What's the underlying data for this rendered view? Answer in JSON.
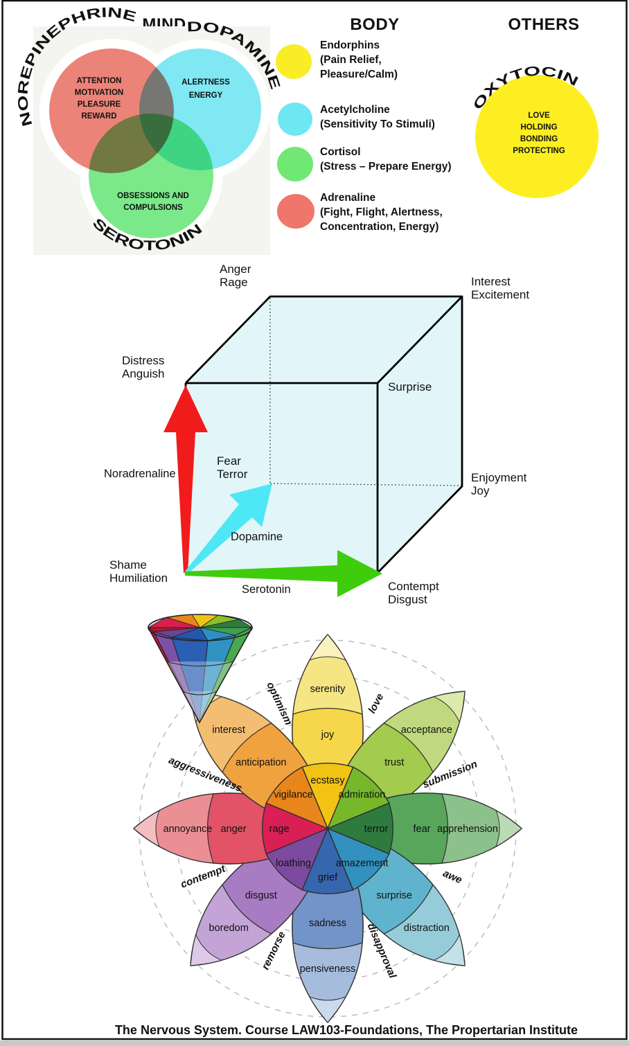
{
  "page": {
    "caption": "The Nervous System. Course LAW103-Foundations, The Propertarian Institute",
    "border_color": "#111111",
    "footer_strip_color": "#c9c9c9"
  },
  "headers": {
    "mind": "MIND",
    "body": "BODY",
    "others": "OTHERS"
  },
  "venn": {
    "circles": [
      {
        "name": "NOREPINEPHRINE",
        "color": "#EC8378",
        "lines": [
          "ATTENTION",
          "MOTIVATION",
          "PLEASURE",
          "REWARD"
        ]
      },
      {
        "name": "DOPAMINE",
        "color": "#7FE8F3",
        "lines": [
          "ALERTNESS",
          "ENERGY"
        ]
      },
      {
        "name": "SEROTONIN",
        "color": "#7BE98A",
        "lines": [
          "OBSESSIONS AND",
          "COMPULSIONS"
        ]
      }
    ]
  },
  "legend": {
    "items": [
      {
        "name": "endorphins",
        "color": "#F9ED26",
        "lines": [
          "Endorphins",
          "(Pain Relief,",
          "Pleasure/Calm)"
        ]
      },
      {
        "name": "acetylcholine",
        "color": "#6FE7F2",
        "lines": [
          "Acetylcholine",
          "(Sensitivity To Stimuli)"
        ]
      },
      {
        "name": "cortisol",
        "color": "#71E873",
        "lines": [
          "Cortisol",
          "(Stress – Prepare Energy)"
        ]
      },
      {
        "name": "adrenaline",
        "color": "#F0756B",
        "lines": [
          "Adrenaline",
          "(Fight, Flight, Alertness,",
          "Concentration, Energy)"
        ]
      }
    ]
  },
  "oxytocin": {
    "name": "OXYTOCIN",
    "color": "#FDEE21",
    "lines": [
      "LOVE",
      "HOLDING",
      "BONDING",
      "PROTECTING"
    ]
  },
  "cube": {
    "face_color": "#E2F6F9",
    "corners": {
      "anger": [
        "Anger",
        "Rage"
      ],
      "interest": [
        "Interest",
        "Excitement"
      ],
      "distress": [
        "Distress",
        "Anguish"
      ],
      "surprise": [
        "Surprise"
      ],
      "fear": [
        "Fear",
        "Terror"
      ],
      "enjoyment": [
        "Enjoyment",
        "Joy"
      ],
      "shame": [
        "Shame",
        "Humiliation"
      ],
      "contempt": [
        "Contempt",
        "Disgust"
      ]
    },
    "arrows": {
      "vertical": {
        "label": "Noradrenaline",
        "color": "#F21B1B",
        "text_color": "#ED1C24"
      },
      "diagonal": {
        "label": "Dopamine",
        "color": "#4EE7F5",
        "text_color": "#2B28DA"
      },
      "horizontal": {
        "label": "Serotonin",
        "color": "#3ECC0D",
        "text_color": "#1E8A2E"
      }
    }
  },
  "wheel": {
    "petals": [
      {
        "angle": 0,
        "labels": [
          "ecstasy",
          "joy",
          "serenity"
        ],
        "colors": [
          "#F2C313",
          "#F6D64A",
          "#F5E583",
          "#FAF2BD"
        ]
      },
      {
        "angle": 45,
        "labels": [
          "admiration",
          "trust",
          "acceptance"
        ],
        "colors": [
          "#76B82A",
          "#A3CB4D",
          "#C0D97E",
          "#DCEAAE"
        ]
      },
      {
        "angle": 90,
        "labels": [
          "terror",
          "fear",
          "apprehension"
        ],
        "colors": [
          "#2E7B3E",
          "#57A65C",
          "#8CC18C",
          "#BCDAB5"
        ]
      },
      {
        "angle": 135,
        "labels": [
          "amazement",
          "surprise",
          "distraction"
        ],
        "colors": [
          "#3291BE",
          "#5FB3CC",
          "#96CCD9",
          "#C3E1E8"
        ]
      },
      {
        "angle": 180,
        "labels": [
          "grief",
          "sadness",
          "pensiveness"
        ],
        "colors": [
          "#3566AE",
          "#7394C8",
          "#A6BCDC",
          "#CBD9ED"
        ]
      },
      {
        "angle": 225,
        "labels": [
          "loathing",
          "disgust",
          "boredom"
        ],
        "colors": [
          "#7C4BA0",
          "#A87CC2",
          "#C4A4D6",
          "#DEC9E9"
        ]
      },
      {
        "angle": 270,
        "labels": [
          "rage",
          "anger",
          "annoyance"
        ],
        "colors": [
          "#DA1F55",
          "#E25368",
          "#EC8F94",
          "#F4BEC0"
        ]
      },
      {
        "angle": 315,
        "labels": [
          "vigilance",
          "anticipation",
          "interest"
        ],
        "colors": [
          "#E8861C",
          "#F0A23F",
          "#F3BD72",
          "#F8DAA9"
        ]
      }
    ],
    "dyads": [
      {
        "label": "optimism",
        "angle": -22.5,
        "rot": 65
      },
      {
        "label": "love",
        "angle": 22.5,
        "rot": -62
      },
      {
        "label": "submission",
        "angle": 67.5,
        "rot": -22
      },
      {
        "label": "awe",
        "angle": 112.5,
        "rot": 24
      },
      {
        "label": "disapproval",
        "angle": 157.5,
        "rot": 67
      },
      {
        "label": "remorse",
        "angle": 202.5,
        "rot": -64
      },
      {
        "label": "contempt",
        "angle": 247.5,
        "rot": -21
      },
      {
        "label": "aggressiveness",
        "angle": 292.5,
        "rot": 22
      }
    ],
    "cone": {
      "disk_back": [
        "#D81F4D",
        "#E8861C",
        "#EFC412",
        "#8BC02A",
        "#2E7B3E"
      ],
      "disk_front": [
        "#B01830",
        "#6A4596",
        "#2456AC",
        "#2E8FC4",
        "#3FA04E"
      ],
      "facets": [
        "#C01838",
        "#7B52A8",
        "#2B5FB4",
        "#3193C1",
        "#4AA84F"
      ]
    }
  }
}
